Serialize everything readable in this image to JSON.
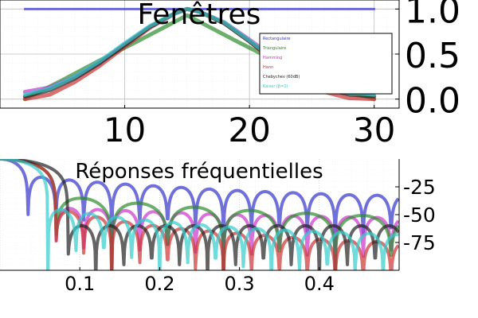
{
  "chart_data": [
    {
      "type": "line",
      "title": "Fenêtres",
      "xlim": [
        0,
        32
      ],
      "ylim": [
        -0.1,
        1.1
      ],
      "x_ticks": [
        "10",
        "20",
        "30"
      ],
      "y_ticks": [
        "0.0",
        "0.5",
        "1.0"
      ],
      "grid": true,
      "legend_position": "top-right",
      "series": [
        {
          "name": "Rectangulaire",
          "color": "#3333cc",
          "x": [
            2,
            30
          ],
          "y": [
            1.0,
            1.0
          ]
        },
        {
          "name": "Triangulaire",
          "color": "#2e8b2e",
          "x": [
            2,
            5,
            8,
            11,
            15,
            19,
            22,
            25,
            30
          ],
          "y": [
            0.0,
            0.21,
            0.43,
            0.64,
            0.93,
            0.64,
            0.43,
            0.21,
            0.0
          ]
        },
        {
          "name": "Hamming",
          "color": "#cc33cc",
          "x": [
            2,
            4,
            6,
            8,
            10,
            12,
            14,
            15,
            16,
            18,
            20,
            22,
            24,
            26,
            28,
            30
          ],
          "y": [
            0.08,
            0.13,
            0.25,
            0.41,
            0.61,
            0.8,
            0.95,
            1.0,
            0.97,
            0.85,
            0.66,
            0.46,
            0.29,
            0.16,
            0.09,
            0.08
          ]
        },
        {
          "name": "Hann",
          "color": "#cc3333",
          "x": [
            2,
            4,
            6,
            8,
            10,
            12,
            14,
            15,
            16,
            18,
            20,
            22,
            24,
            26,
            28,
            30
          ],
          "y": [
            0.0,
            0.05,
            0.19,
            0.37,
            0.58,
            0.79,
            0.95,
            1.0,
            0.97,
            0.84,
            0.64,
            0.41,
            0.22,
            0.08,
            0.01,
            0.0
          ]
        },
        {
          "name": "Chebychev (60dB)",
          "color": "#222222",
          "x": [
            2,
            4,
            6,
            8,
            10,
            12,
            14,
            15,
            16,
            18,
            20,
            22,
            24,
            26,
            28,
            30
          ],
          "y": [
            0.03,
            0.1,
            0.23,
            0.4,
            0.6,
            0.8,
            0.95,
            1.0,
            0.97,
            0.84,
            0.64,
            0.43,
            0.25,
            0.12,
            0.05,
            0.03
          ]
        },
        {
          "name": "Kaiser (β=2)",
          "color": "#33cccc",
          "x": [
            2,
            4,
            6,
            8,
            10,
            12,
            14,
            15,
            16,
            18,
            20,
            22,
            24,
            26,
            28,
            30
          ],
          "y": [
            0.05,
            0.12,
            0.25,
            0.42,
            0.62,
            0.81,
            0.95,
            1.0,
            0.97,
            0.85,
            0.65,
            0.44,
            0.27,
            0.14,
            0.07,
            0.05
          ]
        }
      ]
    },
    {
      "type": "line",
      "title": "Réponses fréquentielles",
      "xlim": [
        0,
        0.5
      ],
      "ylim": [
        -100,
        0
      ],
      "x_ticks": [
        "0.1",
        "0.2",
        "0.3",
        "0.4"
      ],
      "y_ticks": [
        "-25",
        "-50",
        "-75"
      ],
      "grid": true,
      "series": [
        {
          "color": "#3333cc",
          "envelope_db": [
            -12,
            -18,
            -22,
            -25,
            -28,
            -30,
            -32,
            -33
          ],
          "first_null": 0.035,
          "lobe_width": 0.035
        },
        {
          "color": "#cc33cc",
          "envelope_db": [
            -40,
            -44,
            -46,
            -48,
            -50,
            -51,
            -52,
            -53
          ],
          "first_null": 0.07,
          "lobe_width": 0.035
        },
        {
          "color": "#2e8b2e",
          "envelope_db": [
            -25,
            -33,
            -38,
            -42,
            -45,
            -48,
            -50,
            -52
          ],
          "first_null": 0.07,
          "lobe_width": 0.07
        },
        {
          "color": "#cc3333",
          "envelope_db": [
            -30,
            -45,
            -55,
            -62,
            -66,
            -70,
            -73,
            -75
          ],
          "first_null": 0.07,
          "lobe_width": 0.035
        },
        {
          "color": "#222222",
          "envelope_db": [
            -60,
            -60,
            -60,
            -60,
            -60,
            -60,
            -60,
            -60
          ],
          "first_null": 0.085,
          "lobe_width": 0.035
        },
        {
          "color": "#33cccc",
          "envelope_db": [
            -35,
            -45,
            -52,
            -57,
            -61,
            -64,
            -66,
            -68
          ],
          "first_null": 0.06,
          "lobe_width": 0.035
        }
      ]
    }
  ]
}
